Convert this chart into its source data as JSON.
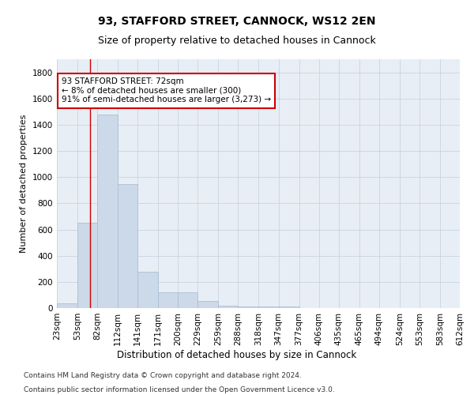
{
  "title1": "93, STAFFORD STREET, CANNOCK, WS12 2EN",
  "title2": "Size of property relative to detached houses in Cannock",
  "xlabel": "Distribution of detached houses by size in Cannock",
  "ylabel": "Number of detached properties",
  "bar_color": "#ccd9e8",
  "bar_edge_color": "#a8bfd4",
  "grid_color": "#c8d4e0",
  "bg_color": "#e8eef5",
  "annotation_box_color": "#cc0000",
  "annotation_line_color": "#cc0000",
  "property_sqm": 72,
  "annotation_text": "93 STAFFORD STREET: 72sqm\n← 8% of detached houses are smaller (300)\n91% of semi-detached houses are larger (3,273) →",
  "bin_edges": [
    23,
    53,
    82,
    112,
    141,
    171,
    200,
    229,
    259,
    288,
    318,
    347,
    377,
    406,
    435,
    465,
    494,
    524,
    553,
    583,
    612
  ],
  "bar_heights": [
    35,
    650,
    1480,
    950,
    275,
    120,
    120,
    55,
    18,
    14,
    14,
    12,
    0,
    0,
    0,
    0,
    0,
    0,
    0,
    0
  ],
  "ylim": [
    0,
    1900
  ],
  "yticks": [
    0,
    200,
    400,
    600,
    800,
    1000,
    1200,
    1400,
    1600,
    1800
  ],
  "footnote1": "Contains HM Land Registry data © Crown copyright and database right 2024.",
  "footnote2": "Contains public sector information licensed under the Open Government Licence v3.0.",
  "title1_fontsize": 10,
  "title2_fontsize": 9,
  "xlabel_fontsize": 8.5,
  "ylabel_fontsize": 8,
  "tick_fontsize": 7.5,
  "annot_fontsize": 7.5,
  "footnote_fontsize": 6.5
}
